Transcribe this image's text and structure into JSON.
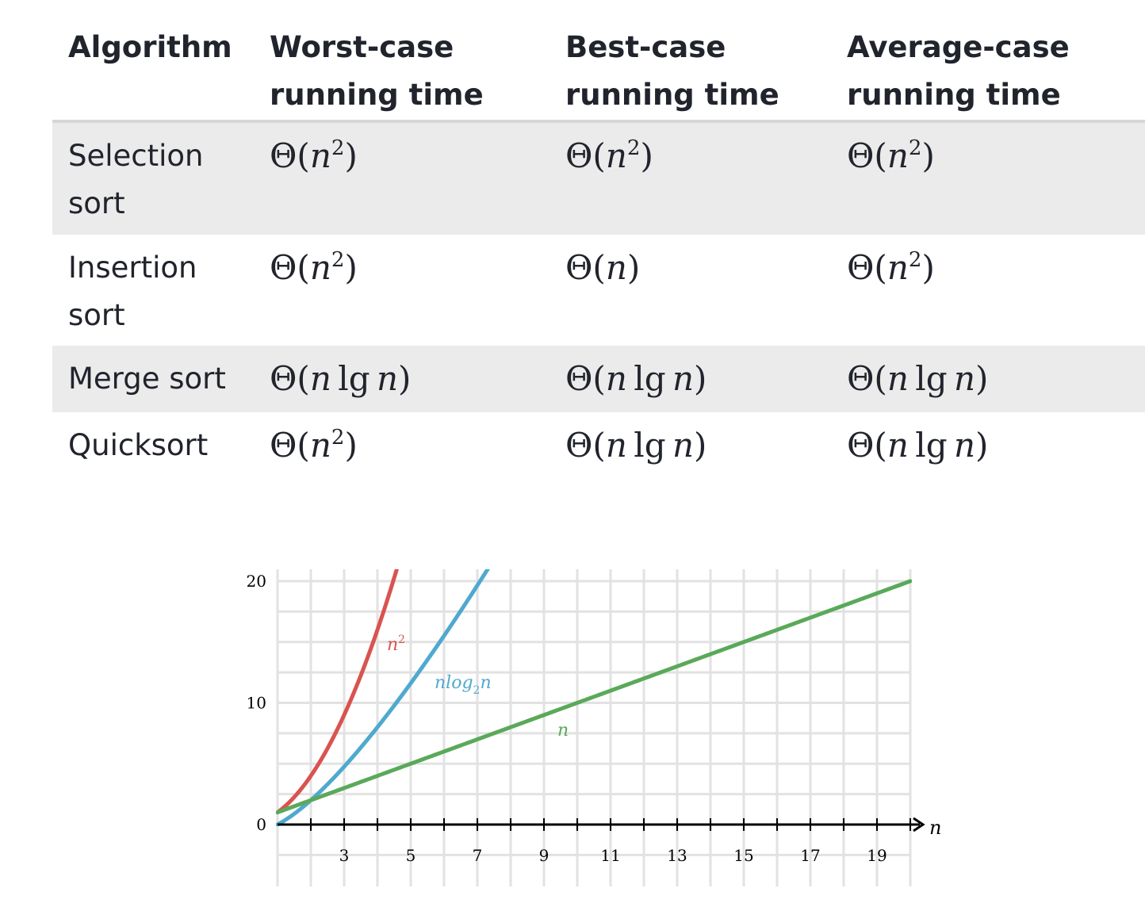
{
  "table": {
    "headers": [
      [
        "Algorithm",
        ""
      ],
      [
        "Worst-case",
        "running time"
      ],
      [
        "Best-case",
        "running time"
      ],
      [
        "Average-case",
        "running time"
      ]
    ],
    "rows": [
      {
        "name": [
          "Selection",
          "sort"
        ],
        "worst": "n2",
        "best": "n2",
        "avg": "n2"
      },
      {
        "name": [
          "Insertion",
          "sort"
        ],
        "worst": "n2",
        "best": "n",
        "avg": "n2"
      },
      {
        "name": [
          "Merge sort",
          ""
        ],
        "worst": "nlgn",
        "best": "nlgn",
        "avg": "nlgn"
      },
      {
        "name": [
          "Quicksort",
          ""
        ],
        "worst": "n2",
        "best": "nlgn",
        "avg": "nlgn"
      }
    ]
  },
  "chart_data": {
    "type": "line",
    "x_range": [
      1,
      20
    ],
    "y_range": [
      0,
      20
    ],
    "x_tick_labels": [
      "3",
      "5",
      "7",
      "9",
      "11",
      "13",
      "15",
      "17",
      "19"
    ],
    "y_tick_labels": [
      "0",
      "10",
      "20"
    ],
    "x_axis_label": "n",
    "grid": true,
    "series": [
      {
        "name": "n²",
        "color": "#d9534f",
        "function": "n^2",
        "x": [
          1,
          1.5,
          2,
          2.5,
          3,
          3.5,
          4,
          4.5
        ],
        "y": [
          1,
          2.25,
          4,
          6.25,
          9,
          12.25,
          16,
          20.25
        ]
      },
      {
        "name": "nlog₂n",
        "color": "#4fa9cf",
        "function": "n*log2(n)",
        "x": [
          1,
          2,
          3,
          4,
          5,
          6,
          7
        ],
        "y": [
          0,
          2,
          4.75,
          8,
          11.61,
          15.51,
          19.65
        ]
      },
      {
        "name": "n",
        "color": "#5aa95a",
        "function": "n",
        "x": [
          1,
          20
        ],
        "y": [
          1,
          20
        ]
      }
    ]
  }
}
